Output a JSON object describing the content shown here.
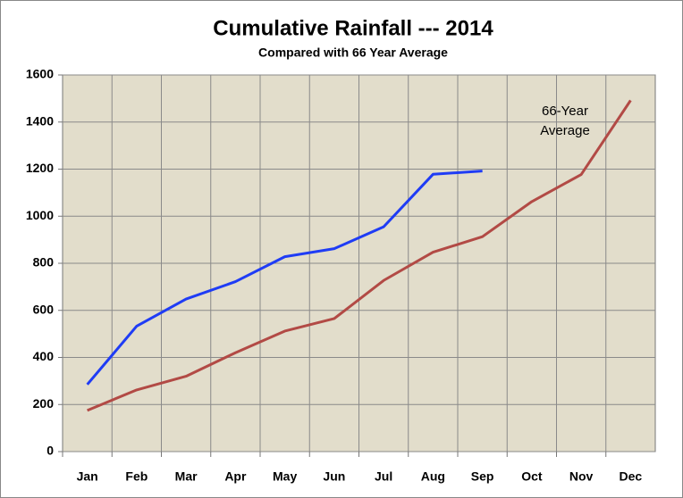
{
  "chart_data": {
    "type": "line",
    "title": "Cumulative Rainfall --- 2014",
    "subtitle": "Compared with 66 Year Average",
    "categories": [
      "Jan",
      "Feb",
      "Mar",
      "Apr",
      "May",
      "Jun",
      "Jul",
      "Aug",
      "Sep",
      "Oct",
      "Nov",
      "Dec"
    ],
    "series": [
      {
        "color": "#1f3cf5",
        "values": [
          285,
          533,
          648,
          722,
          828,
          862,
          955,
          1178,
          1192,
          null,
          null,
          null
        ]
      },
      {
        "name": "66-Year Average",
        "color": "#b24a45",
        "values": [
          175,
          262,
          320,
          420,
          512,
          565,
          727,
          847,
          913,
          1062,
          1177,
          1492
        ]
      }
    ],
    "ylim": [
      0,
      1600
    ],
    "yticks": [
      0,
      200,
      400,
      600,
      800,
      1000,
      1200,
      1400,
      1600
    ],
    "grid": true
  }
}
